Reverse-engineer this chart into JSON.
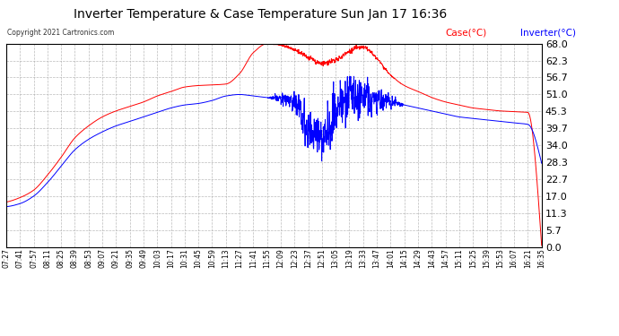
{
  "title": "Inverter Temperature & Case Temperature Sun Jan 17 16:36",
  "copyright": "Copyright 2021 Cartronics.com",
  "legend_case": "Case(°C)",
  "legend_inverter": "Inverter(°C)",
  "yticks": [
    0.0,
    5.7,
    11.3,
    17.0,
    22.7,
    28.3,
    34.0,
    39.7,
    45.3,
    51.0,
    56.7,
    62.3,
    68.0
  ],
  "ymin": 0.0,
  "ymax": 68.0,
  "case_color": "red",
  "inverter_color": "blue",
  "background_color": "white",
  "grid_color": "#aaaaaa",
  "xtick_labels": [
    "07:27",
    "07:41",
    "07:57",
    "08:11",
    "08:25",
    "08:39",
    "08:53",
    "09:07",
    "09:21",
    "09:35",
    "09:49",
    "10:03",
    "10:17",
    "10:31",
    "10:45",
    "10:59",
    "11:13",
    "11:27",
    "11:41",
    "11:55",
    "12:09",
    "12:23",
    "12:37",
    "12:51",
    "13:05",
    "13:19",
    "13:33",
    "13:47",
    "14:01",
    "14:15",
    "14:29",
    "14:43",
    "14:57",
    "15:11",
    "15:25",
    "15:39",
    "15:53",
    "16:07",
    "16:21",
    "16:35"
  ],
  "case_data": [
    15.0,
    16.5,
    19.0,
    24.0,
    30.0,
    36.5,
    40.5,
    43.5,
    45.5,
    47.0,
    48.5,
    50.5,
    52.0,
    53.5,
    54.0,
    54.2,
    54.5,
    58.0,
    65.0,
    68.0,
    67.5,
    66.0,
    63.5,
    61.5,
    62.5,
    65.5,
    67.0,
    63.0,
    57.5,
    54.0,
    52.0,
    50.0,
    48.5,
    47.5,
    46.5,
    46.0,
    45.5,
    45.3,
    45.0,
    0.5
  ],
  "inverter_data": [
    13.5,
    14.5,
    17.0,
    21.5,
    27.0,
    32.5,
    36.0,
    38.5,
    40.5,
    42.0,
    43.5,
    45.0,
    46.5,
    47.5,
    48.0,
    49.0,
    50.5,
    51.0,
    50.5,
    50.0,
    49.5,
    49.0,
    38.5,
    36.5,
    45.0,
    50.5,
    50.0,
    49.5,
    48.5,
    47.5,
    46.5,
    45.5,
    44.5,
    43.5,
    43.0,
    42.5,
    42.0,
    41.5,
    41.0,
    28.0
  ]
}
